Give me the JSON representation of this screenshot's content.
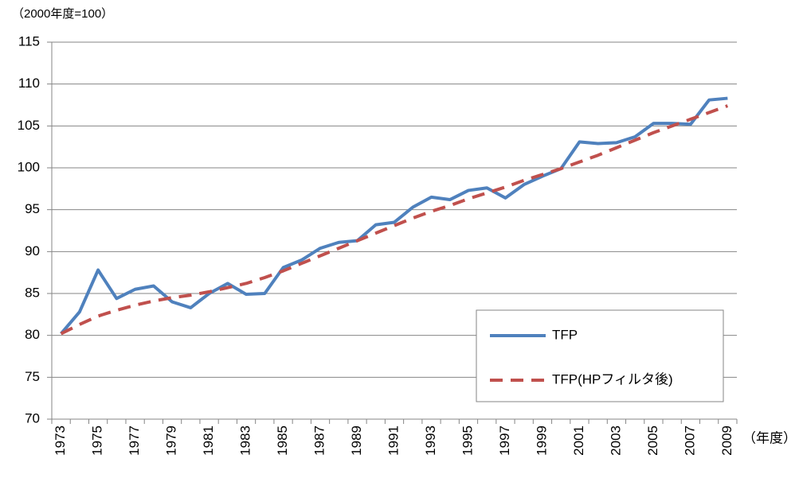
{
  "chart_data": {
    "type": "line",
    "y_label": "（2000年度=100）",
    "x_label": "（年度）",
    "categories": [
      "1973",
      null,
      "1975",
      null,
      "1977",
      null,
      "1979",
      null,
      "1981",
      null,
      "1983",
      null,
      "1985",
      null,
      "1987",
      null,
      "1989",
      null,
      "1991",
      null,
      "1993",
      null,
      "1995",
      null,
      "1997",
      null,
      "1999",
      null,
      "2001",
      null,
      "2003",
      null,
      "2005",
      null,
      "2007",
      null,
      "2009"
    ],
    "series": [
      {
        "name": "TFP",
        "color": "#4f81bd",
        "dash": false,
        "values": [
          80.2,
          82.8,
          87.8,
          84.4,
          85.5,
          85.9,
          84.0,
          83.3,
          85.0,
          86.2,
          84.9,
          85.0,
          88.1,
          89.0,
          90.4,
          91.1,
          91.3,
          93.2,
          93.5,
          95.3,
          96.5,
          96.2,
          97.3,
          97.6,
          96.4,
          98.0,
          99.0,
          99.9,
          103.1,
          102.9,
          103.0,
          103.7,
          105.3,
          105.3,
          105.2,
          108.1,
          108.3
        ]
      },
      {
        "name": "TFP(HPフィルタ後)",
        "color": "#c0504d",
        "dash": true,
        "values": [
          80.2,
          81.3,
          82.3,
          83.0,
          83.6,
          84.1,
          84.5,
          84.8,
          85.2,
          85.7,
          86.2,
          86.9,
          87.7,
          88.6,
          89.5,
          90.4,
          91.3,
          92.2,
          93.1,
          94.0,
          94.8,
          95.5,
          96.3,
          97.0,
          97.7,
          98.5,
          99.2,
          99.9,
          100.7,
          101.5,
          102.4,
          103.3,
          104.2,
          105.0,
          105.8,
          106.6,
          107.4
        ]
      }
    ],
    "ylim": [
      70,
      115
    ],
    "yticks": [
      70,
      75,
      80,
      85,
      90,
      95,
      100,
      105,
      110,
      115
    ],
    "grid": true,
    "legend": "lower right"
  }
}
